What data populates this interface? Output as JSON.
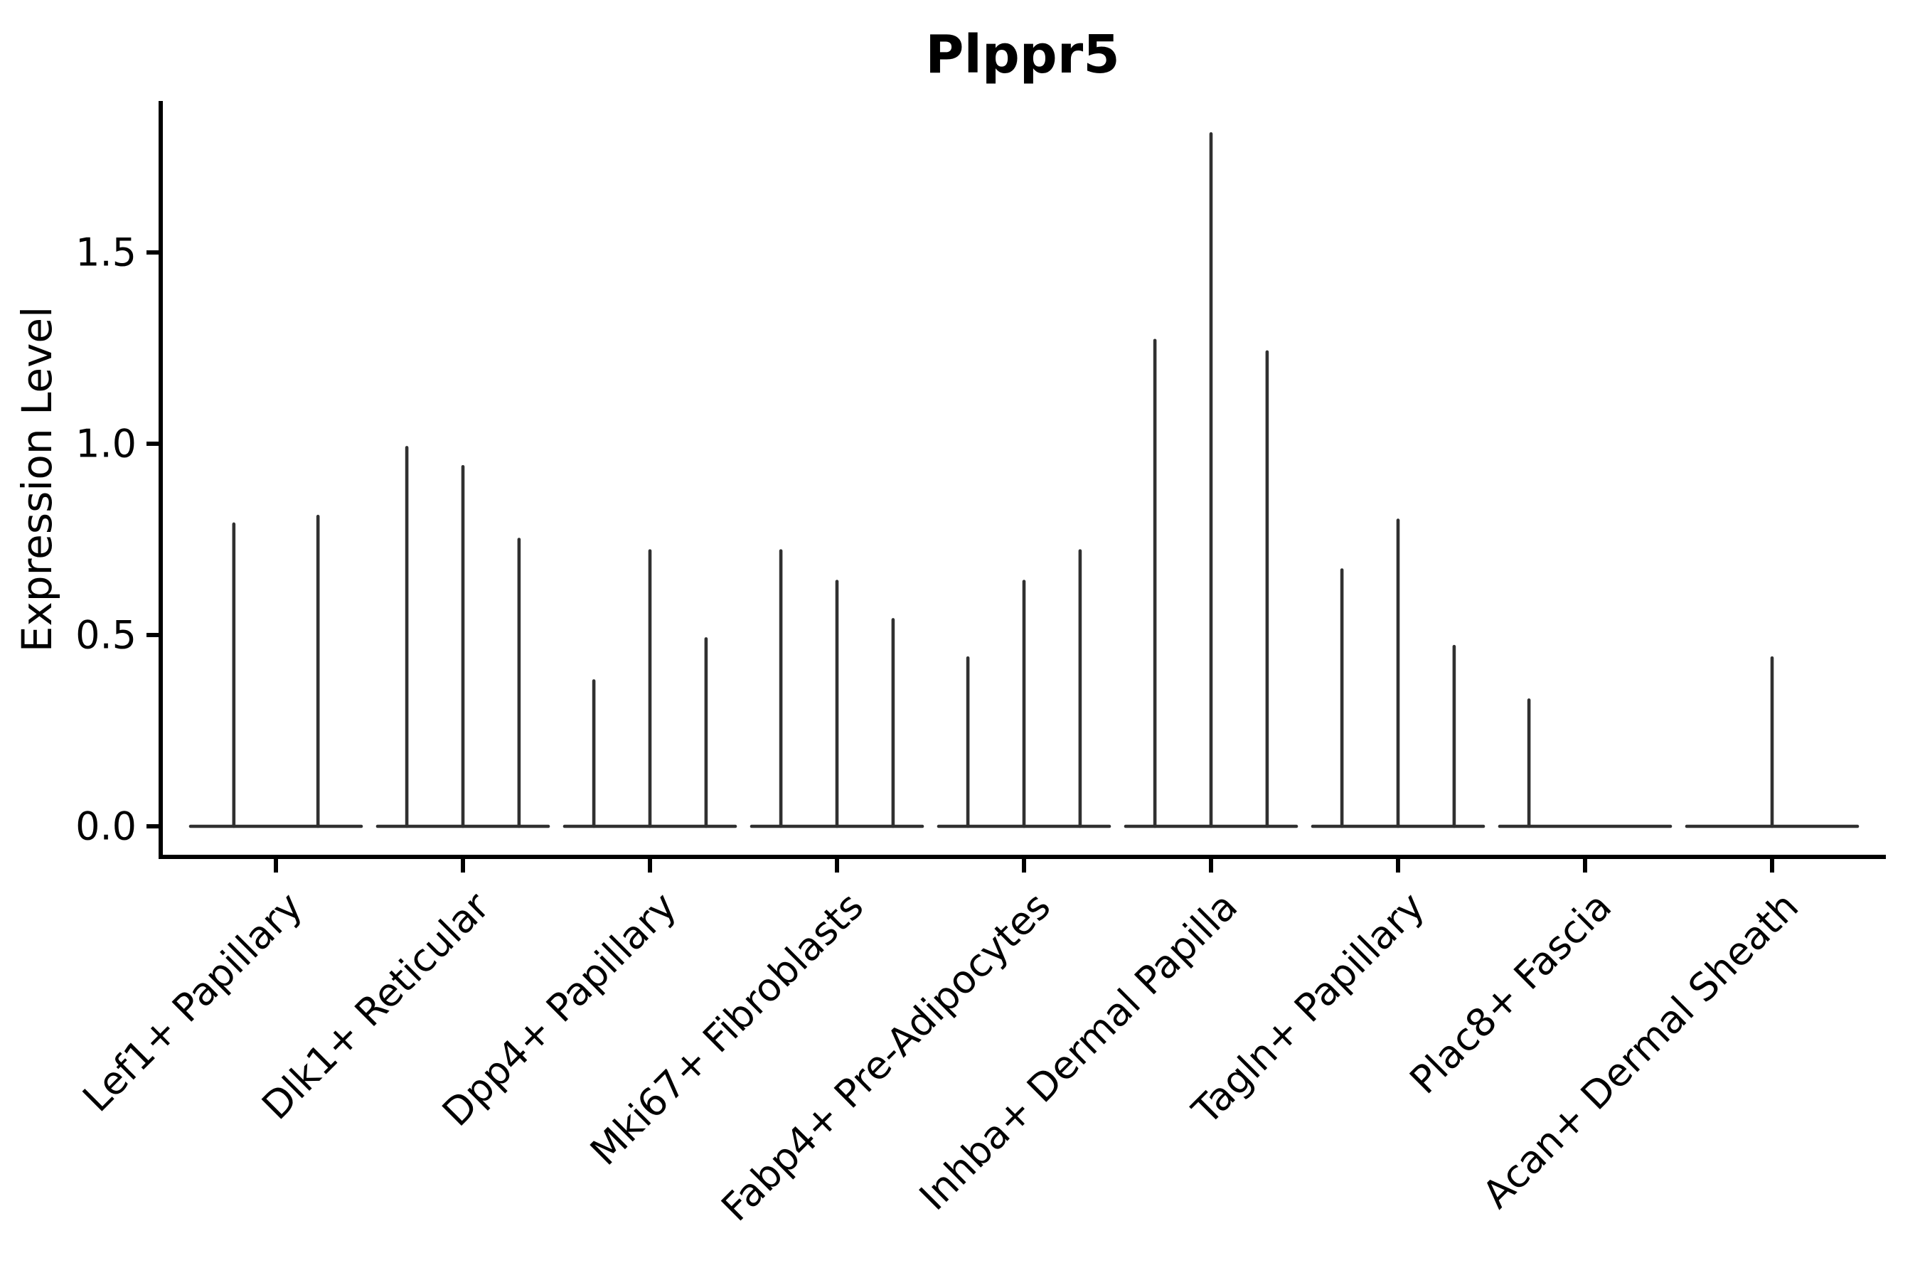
{
  "chart_data": {
    "type": "violin",
    "title": "Plppr5",
    "xlabel": "",
    "ylabel": "Expression Level",
    "yticks": [
      0.0,
      0.5,
      1.0,
      1.5
    ],
    "ylim": [
      -0.08,
      1.9
    ],
    "grid": false,
    "legend": "none",
    "violin_color": "#303030",
    "axis_color": "#000000",
    "categories": [
      "Lef1+ Papillary",
      "Dlk1+ Reticular",
      "Dpp4+ Papillary",
      "Mki67+ Fibroblasts",
      "Fabp4+ Pre-Adipocytes",
      "Inhba+ Dermal Papilla",
      "Tagln+ Papillary",
      "Plac8+ Fascia",
      "Acan+ Dermal Sheath"
    ],
    "groups": [
      {
        "label": "Lef1+ Papillary",
        "violins": [
          {
            "offset": -0.225,
            "max": 0.79
          },
          {
            "offset": 0.225,
            "max": 0.81
          }
        ]
      },
      {
        "label": "Dlk1+ Reticular",
        "violins": [
          {
            "offset": -0.3,
            "max": 0.99
          },
          {
            "offset": 0,
            "max": 0.94
          },
          {
            "offset": 0.3,
            "max": 0.75
          }
        ]
      },
      {
        "label": "Dpp4+ Papillary",
        "violins": [
          {
            "offset": -0.3,
            "max": 0.38
          },
          {
            "offset": 0,
            "max": 0.72
          },
          {
            "offset": 0.3,
            "max": 0.49
          }
        ]
      },
      {
        "label": "Mki67+ Fibroblasts",
        "violins": [
          {
            "offset": -0.3,
            "max": 0.72
          },
          {
            "offset": 0,
            "max": 0.64
          },
          {
            "offset": 0.3,
            "max": 0.54
          }
        ]
      },
      {
        "label": "Fabp4+ Pre-Adipocytes",
        "violins": [
          {
            "offset": -0.3,
            "max": 0.44
          },
          {
            "offset": 0,
            "max": 0.64
          },
          {
            "offset": 0.3,
            "max": 0.72
          }
        ]
      },
      {
        "label": "Inhba+ Dermal Papilla",
        "violins": [
          {
            "offset": -0.3,
            "max": 1.27
          },
          {
            "offset": 0,
            "max": 1.81
          },
          {
            "offset": 0.3,
            "max": 1.24
          }
        ]
      },
      {
        "label": "Tagln+ Papillary",
        "violins": [
          {
            "offset": -0.3,
            "max": 0.67
          },
          {
            "offset": 0,
            "max": 0.8
          },
          {
            "offset": 0.3,
            "max": 0.47
          }
        ]
      },
      {
        "label": "Plac8+ Fascia",
        "violins": [
          {
            "offset": -0.3,
            "max": 0.33
          },
          {
            "offset": 0,
            "max": 0
          },
          {
            "offset": 0.3,
            "max": 0
          }
        ]
      },
      {
        "label": "Acan+ Dermal Sheath",
        "violins": [
          {
            "offset": -0.3,
            "max": 0
          },
          {
            "offset": 0,
            "max": 0.44
          },
          {
            "offset": 0.3,
            "max": 0
          }
        ]
      }
    ]
  }
}
